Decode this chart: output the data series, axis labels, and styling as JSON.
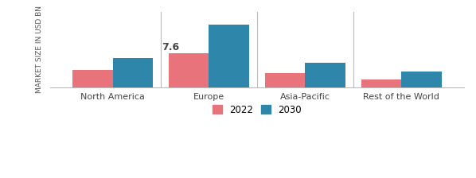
{
  "categories": [
    "North America",
    "Europe",
    "Asia-Pacific",
    "Rest of the World"
  ],
  "values_2022": [
    3.8,
    7.6,
    3.2,
    1.8
  ],
  "values_2030": [
    6.5,
    14.0,
    5.5,
    3.5
  ],
  "color_2022": "#e8737a",
  "color_2030": "#2e86ab",
  "annotation_label": "7.6",
  "annotation_category": "Europe",
  "ylabel": "MARKET SIZE IN USD BN",
  "legend_labels": [
    "2022",
    "2030"
  ],
  "bar_width": 0.42,
  "background_color": "#ffffff",
  "ylabel_fontsize": 6.5,
  "tick_fontsize": 8,
  "annotation_fontsize": 9,
  "ylim_max": 16.8
}
